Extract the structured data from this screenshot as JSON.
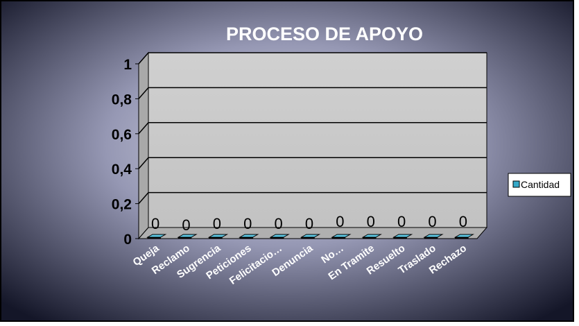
{
  "chart_data": {
    "type": "bar",
    "title": "PROCESO DE APOYO",
    "categories": [
      "Queja",
      "Reclamo",
      "Sugrencia",
      "Peticiones",
      "Felicitacio…",
      "Denuncia",
      "No…",
      "En Tramite",
      "Resuelto",
      "Traslado",
      "Rechazo"
    ],
    "series": [
      {
        "name": "Cantidad",
        "values": [
          0,
          0,
          0,
          0,
          0,
          0,
          0,
          0,
          0,
          0,
          0
        ]
      }
    ],
    "yticks": [
      "0",
      "0,2",
      "0,4",
      "0,6",
      "0,8",
      "1"
    ],
    "ylim": [
      0,
      1
    ],
    "grid": true,
    "legend": "right",
    "colors": {
      "background": "#4a4f70",
      "plot": "#c9c9c9",
      "bar": "#36a9c9",
      "text": "#ffffff",
      "value_label": "#000000"
    }
  }
}
